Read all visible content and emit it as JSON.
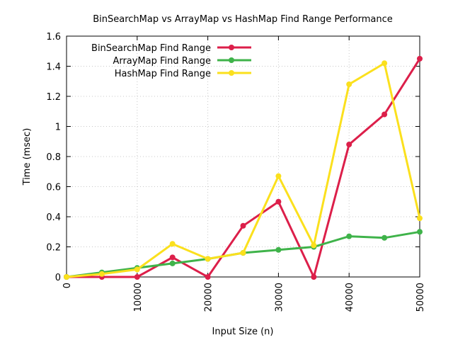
{
  "chart_data": {
    "type": "line",
    "title": "BinSearchMap vs ArrayMap vs HashMap Find Range Performance",
    "xlabel": "Input Size (n)",
    "ylabel": "Time (msec)",
    "xlim": [
      0,
      50000
    ],
    "ylim": [
      0,
      1.6
    ],
    "xticks": [
      0,
      10000,
      20000,
      30000,
      40000,
      50000
    ],
    "xtick_labels": [
      "0",
      "10000",
      "20000",
      "30000",
      "40000",
      "50000"
    ],
    "yticks": [
      0,
      0.2,
      0.4,
      0.6,
      0.8,
      1,
      1.2,
      1.4,
      1.6
    ],
    "ytick_labels": [
      "0",
      "0.2",
      "0.4",
      "0.6",
      "0.8",
      "1",
      "1.2",
      "1.4",
      "1.6"
    ],
    "grid": true,
    "legend_position": "top-left",
    "x": [
      0,
      5000,
      10000,
      15000,
      20000,
      25000,
      30000,
      35000,
      40000,
      45000,
      50000
    ],
    "series": [
      {
        "name": "BinSearchMap Find Range",
        "color": "#dc1f4a",
        "values": [
          0,
          0,
          0,
          0.13,
          0,
          0.34,
          0.5,
          0,
          0.88,
          1.08,
          1.45
        ]
      },
      {
        "name": "ArrayMap Find Range",
        "color": "#3fb34a",
        "values": [
          0,
          0.03,
          0.06,
          0.09,
          0.12,
          0.16,
          0.18,
          0.2,
          0.27,
          0.26,
          0.3
        ]
      },
      {
        "name": "HashMap Find Range",
        "color": "#fbe01d",
        "values": [
          0,
          0.02,
          0.05,
          0.22,
          0.12,
          0.16,
          0.67,
          0.21,
          1.28,
          1.42,
          0.39
        ]
      }
    ]
  }
}
